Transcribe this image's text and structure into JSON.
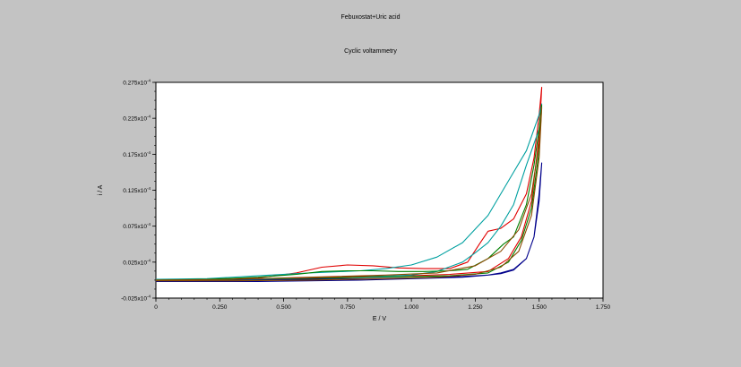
{
  "window": {
    "title": "Febuxostat+Uric acid",
    "subtitle": "Cyclic voltammetry"
  },
  "colors": {
    "background": "#c3c3c3",
    "plot_bg": "#ffffff",
    "axis": "#000000"
  },
  "chart_data": {
    "type": "line",
    "title": "Febuxostat+Uric acid",
    "subtitle": "Cyclic voltammetry",
    "xlabel": "E / V",
    "ylabel": "i / A",
    "xlim": [
      0,
      1.75
    ],
    "ylim": [
      -0.025,
      0.275
    ],
    "x_ticks": [
      0,
      0.25,
      0.5,
      0.75,
      1.0,
      1.25,
      1.5,
      1.75
    ],
    "x_tick_labels": [
      "0",
      "0.250",
      "0.500",
      "0.750",
      "1.000",
      "1.250",
      "1.500",
      "1.750"
    ],
    "y_ticks": [
      -0.025,
      0.025,
      0.075,
      0.125,
      0.175,
      0.225,
      0.275
    ],
    "y_tick_labels": [
      "-0.025x10",
      "0.025x10",
      "0.075x10",
      "0.125x10",
      "0.175x10",
      "0.225x10",
      "0.275x10"
    ],
    "y_tick_exponent": "-4",
    "series": [
      {
        "color": "#e00000",
        "points": [
          [
            0,
            0.0
          ],
          [
            0.2,
            0.0
          ],
          [
            0.4,
            0.003
          ],
          [
            0.55,
            0.01
          ],
          [
            0.65,
            0.018
          ],
          [
            0.75,
            0.021
          ],
          [
            0.85,
            0.02
          ],
          [
            0.95,
            0.017
          ],
          [
            1.05,
            0.016
          ],
          [
            1.15,
            0.016
          ],
          [
            1.22,
            0.025
          ],
          [
            1.27,
            0.052
          ],
          [
            1.3,
            0.068
          ],
          [
            1.35,
            0.072
          ],
          [
            1.4,
            0.085
          ],
          [
            1.45,
            0.12
          ],
          [
            1.48,
            0.17
          ],
          [
            1.5,
            0.23
          ],
          [
            1.51,
            0.268
          ],
          [
            1.5,
            0.2
          ],
          [
            1.47,
            0.11
          ],
          [
            1.43,
            0.06
          ],
          [
            1.38,
            0.03
          ],
          [
            1.3,
            0.012
          ],
          [
            1.15,
            0.008
          ],
          [
            1.0,
            0.006
          ],
          [
            0.8,
            0.005
          ],
          [
            0.6,
            0.003
          ],
          [
            0.4,
            0.001
          ],
          [
            0.2,
            0.0
          ],
          [
            0,
            -0.001
          ]
        ]
      },
      {
        "color": "#00a0a0",
        "points": [
          [
            0,
            0.001
          ],
          [
            0.2,
            0.002
          ],
          [
            0.4,
            0.006
          ],
          [
            0.6,
            0.01
          ],
          [
            0.8,
            0.013
          ],
          [
            0.9,
            0.016
          ],
          [
            1.0,
            0.021
          ],
          [
            1.1,
            0.032
          ],
          [
            1.2,
            0.052
          ],
          [
            1.3,
            0.09
          ],
          [
            1.4,
            0.15
          ],
          [
            1.45,
            0.18
          ],
          [
            1.5,
            0.23
          ],
          [
            1.51,
            0.245
          ],
          [
            1.5,
            0.21
          ],
          [
            1.45,
            0.16
          ],
          [
            1.4,
            0.105
          ],
          [
            1.35,
            0.075
          ],
          [
            1.3,
            0.052
          ],
          [
            1.25,
            0.038
          ],
          [
            1.2,
            0.025
          ],
          [
            1.1,
            0.012
          ],
          [
            1.0,
            0.007
          ],
          [
            0.8,
            0.004
          ],
          [
            0.6,
            0.002
          ],
          [
            0.4,
            0.001
          ],
          [
            0.2,
            0.0
          ],
          [
            0,
            0.0
          ]
        ]
      },
      {
        "color": "#008000",
        "points": [
          [
            0,
            0.0
          ],
          [
            0.2,
            0.001
          ],
          [
            0.4,
            0.004
          ],
          [
            0.55,
            0.008
          ],
          [
            0.65,
            0.012
          ],
          [
            0.75,
            0.013
          ],
          [
            0.85,
            0.013
          ],
          [
            0.95,
            0.012
          ],
          [
            1.05,
            0.012
          ],
          [
            1.15,
            0.013
          ],
          [
            1.22,
            0.015
          ],
          [
            1.3,
            0.03
          ],
          [
            1.36,
            0.05
          ],
          [
            1.4,
            0.06
          ],
          [
            1.45,
            0.105
          ],
          [
            1.48,
            0.16
          ],
          [
            1.5,
            0.21
          ],
          [
            1.51,
            0.243
          ],
          [
            1.5,
            0.18
          ],
          [
            1.47,
            0.1
          ],
          [
            1.43,
            0.055
          ],
          [
            1.38,
            0.025
          ],
          [
            1.3,
            0.01
          ],
          [
            1.15,
            0.006
          ],
          [
            1.0,
            0.005
          ],
          [
            0.8,
            0.004
          ],
          [
            0.6,
            0.002
          ],
          [
            0.4,
            0.0
          ],
          [
            0.2,
            -0.001
          ],
          [
            0,
            -0.002
          ]
        ]
      },
      {
        "color": "#00008b",
        "points": [
          [
            0,
            -0.001
          ],
          [
            0.2,
            -0.001
          ],
          [
            0.4,
            0.0
          ],
          [
            0.6,
            0.001
          ],
          [
            0.8,
            0.002
          ],
          [
            1.0,
            0.003
          ],
          [
            1.2,
            0.005
          ],
          [
            1.3,
            0.007
          ],
          [
            1.35,
            0.009
          ],
          [
            1.4,
            0.014
          ],
          [
            1.45,
            0.03
          ],
          [
            1.48,
            0.06
          ],
          [
            1.5,
            0.11
          ],
          [
            1.51,
            0.163
          ],
          [
            1.5,
            0.12
          ],
          [
            1.48,
            0.06
          ],
          [
            1.45,
            0.03
          ],
          [
            1.4,
            0.015
          ],
          [
            1.35,
            0.01
          ],
          [
            1.3,
            0.007
          ],
          [
            1.2,
            0.004
          ],
          [
            1.0,
            0.002
          ],
          [
            0.8,
            0.0
          ],
          [
            0.6,
            -0.001
          ],
          [
            0.4,
            -0.002
          ],
          [
            0.2,
            -0.002
          ],
          [
            0,
            -0.002
          ]
        ]
      },
      {
        "color": "#8a4a00",
        "points": [
          [
            0,
            0.0
          ],
          [
            0.3,
            0.001
          ],
          [
            0.6,
            0.004
          ],
          [
            0.9,
            0.007
          ],
          [
            1.1,
            0.01
          ],
          [
            1.25,
            0.02
          ],
          [
            1.35,
            0.04
          ],
          [
            1.42,
            0.07
          ],
          [
            1.47,
            0.12
          ],
          [
            1.5,
            0.19
          ],
          [
            1.51,
            0.24
          ],
          [
            1.5,
            0.17
          ],
          [
            1.47,
            0.09
          ],
          [
            1.42,
            0.04
          ],
          [
            1.35,
            0.018
          ],
          [
            1.25,
            0.008
          ],
          [
            1.1,
            0.004
          ],
          [
            0.9,
            0.002
          ],
          [
            0.6,
            0.0
          ],
          [
            0.3,
            -0.001
          ],
          [
            0,
            -0.001
          ]
        ]
      }
    ]
  }
}
